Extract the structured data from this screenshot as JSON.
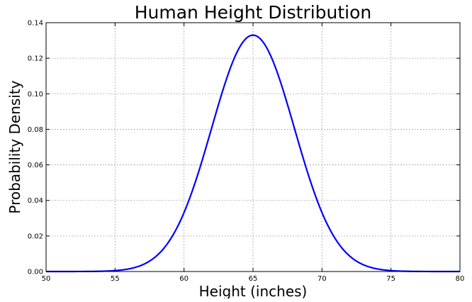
{
  "chart_data": {
    "type": "line",
    "title": "Human Height Distribution",
    "xlabel": "Height (inches)",
    "ylabel": "Probability Density",
    "xlim": [
      50,
      80
    ],
    "ylim": [
      0,
      0.14
    ],
    "x_ticks": [
      "50",
      "55",
      "60",
      "65",
      "70",
      "75",
      "80"
    ],
    "y_ticks": [
      "0.00",
      "0.02",
      "0.04",
      "0.06",
      "0.08",
      "0.10",
      "0.12",
      "0.14"
    ],
    "grid": true,
    "grid_style": "dotted",
    "legend": null,
    "series": [
      {
        "color": "#0000ff",
        "distribution": "normal",
        "mean": 65,
        "std_dev": 3,
        "x_start": 50,
        "x_end": 80,
        "peak_value": 0.133
      }
    ]
  }
}
